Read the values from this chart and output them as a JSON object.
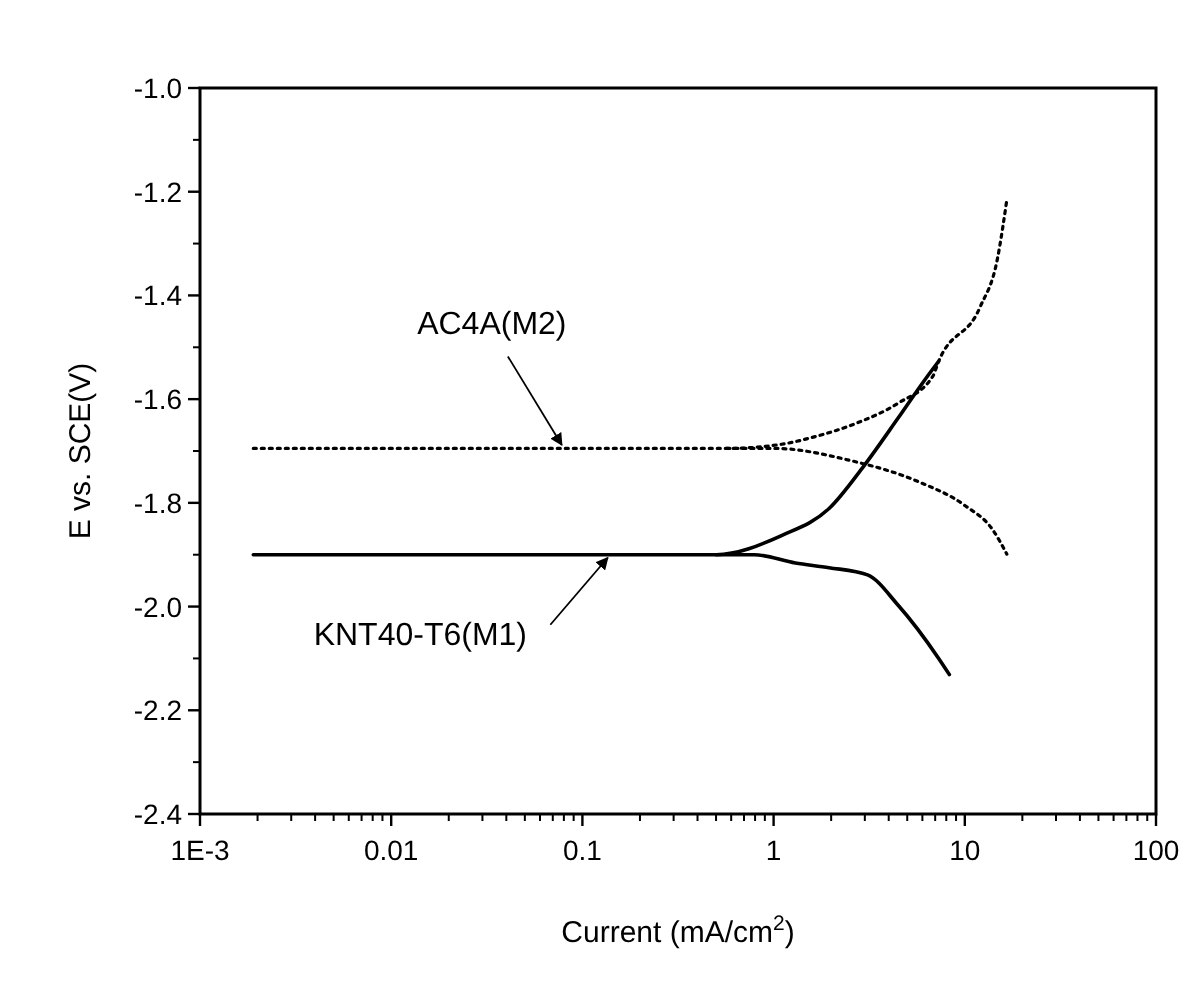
{
  "chart_data": {
    "type": "line",
    "xlabel": "Current (mA/cm$^{2}$)",
    "ylabel": "E vs. SCE(V)",
    "log": "x",
    "xlim": [
      0.001,
      100
    ],
    "xticks": [
      {
        "value": 0.001,
        "label": "1E-3"
      },
      0.01,
      0.1,
      1,
      10,
      100
    ],
    "ylim": [
      -2.4,
      -1.0
    ],
    "yticks": [
      {
        "value": -2.4,
        "label": "-2.4"
      },
      {
        "value": -2.2,
        "label": "-2.2"
      },
      {
        "value": -2.0,
        "label": "-2.0"
      },
      {
        "value": -1.8,
        "label": "-1.8"
      },
      {
        "value": -1.6,
        "label": "-1.6"
      },
      {
        "value": -1.4,
        "label": "-1.4"
      },
      {
        "value": -1.2,
        "label": "-1.2"
      },
      {
        "value": -1.0,
        "label": "-1.0"
      }
    ],
    "grid": false,
    "series": [
      {
        "color": "#000000",
        "line_style": "dotted",
        "x": [
          0.0019,
          0.57,
          1.1,
          1.66,
          2.73,
          4.47,
          6.8,
          7.3,
          12.0,
          14.8,
          16.6
        ],
        "values": [
          -1.695,
          -1.695,
          -1.687,
          -1.672,
          -1.646,
          -1.608,
          -1.556,
          -1.527,
          -1.423,
          -1.33,
          -1.215
        ]
      },
      {
        "color": "#000000",
        "line_style": "dotted",
        "x": [
          0.57,
          1.01,
          2.5,
          5.7,
          10,
          14,
          16.6
        ],
        "values": [
          -1.695,
          -1.695,
          -1.718,
          -1.759,
          -1.805,
          -1.852,
          -1.899
        ]
      },
      {
        "color": "#000000",
        "line_style": "solid",
        "x": [
          0.0019,
          0.5,
          1.1,
          1.95,
          2.95,
          4.47,
          6.2,
          7.3
        ],
        "values": [
          -1.9,
          -1.9,
          -1.863,
          -1.811,
          -1.73,
          -1.637,
          -1.562,
          -1.527
        ]
      },
      {
        "color": "#000000",
        "line_style": "solid",
        "x": [
          0.5,
          0.79,
          1.3,
          1.95,
          3.1,
          4.47,
          7.3,
          8.3
        ],
        "values": [
          -1.9,
          -1.9,
          -1.916,
          -1.925,
          -1.939,
          -1.997,
          -2.1,
          -2.131
        ]
      }
    ],
    "annotations": [
      {
        "text": "AC4A(M2)",
        "x": 0.08,
        "y": -1.695
      },
      {
        "text": "KNT40-T6(M1)",
        "x": 0.14,
        "y": -1.9
      }
    ]
  }
}
